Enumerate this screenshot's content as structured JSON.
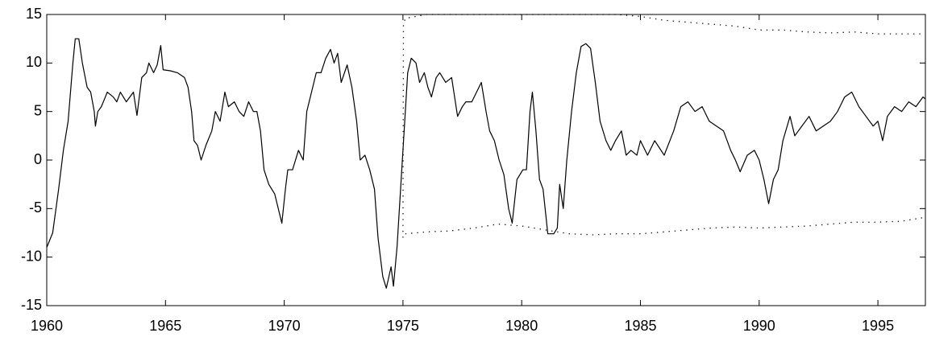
{
  "chart_data": {
    "type": "line",
    "xlim": [
      1960,
      1997
    ],
    "ylim": [
      -15,
      15
    ],
    "xticks": [
      1960,
      1965,
      1970,
      1975,
      1980,
      1985,
      1990,
      1995
    ],
    "yticks": [
      -15,
      -10,
      -5,
      0,
      5,
      10,
      15
    ],
    "grid": false,
    "series": [
      {
        "color": "#000000",
        "style": "solid",
        "x": [
          1960.0,
          1960.25,
          1960.5,
          1960.7,
          1960.9,
          1961.1,
          1961.2,
          1961.35,
          1961.5,
          1961.7,
          1961.85,
          1962.0,
          1962.05,
          1962.15,
          1962.3,
          1962.55,
          1962.8,
          1962.95,
          1963.1,
          1963.35,
          1963.65,
          1963.8,
          1964.0,
          1964.2,
          1964.3,
          1964.5,
          1964.65,
          1964.8,
          1964.9,
          1965.2,
          1965.5,
          1965.8,
          1965.95,
          1966.1,
          1966.2,
          1966.35,
          1966.5,
          1966.7,
          1966.95,
          1967.1,
          1967.3,
          1967.5,
          1967.65,
          1967.9,
          1968.1,
          1968.3,
          1968.5,
          1968.7,
          1968.85,
          1969.0,
          1969.15,
          1969.35,
          1969.6,
          1969.75,
          1969.9,
          1970.05,
          1970.15,
          1970.35,
          1970.6,
          1970.8,
          1970.95,
          1971.15,
          1971.35,
          1971.55,
          1971.75,
          1971.95,
          1972.1,
          1972.25,
          1972.4,
          1972.65,
          1972.85,
          1973.05,
          1973.2,
          1973.4,
          1973.6,
          1973.8,
          1973.95,
          1974.15,
          1974.3,
          1974.5,
          1974.6,
          1974.75,
          1974.9,
          1975.05,
          1975.2,
          1975.35,
          1975.55,
          1975.7,
          1975.9,
          1976.05,
          1976.2,
          1976.4,
          1976.55,
          1976.8,
          1977.05,
          1977.3,
          1977.5,
          1977.65,
          1977.9,
          1978.1,
          1978.3,
          1978.5,
          1978.65,
          1978.85,
          1979.05,
          1979.25,
          1979.45,
          1979.6,
          1979.8,
          1980.05,
          1980.2,
          1980.35,
          1980.45,
          1980.6,
          1980.75,
          1980.9,
          1981.1,
          1981.35,
          1981.5,
          1981.6,
          1981.75,
          1981.9,
          1982.1,
          1982.3,
          1982.5,
          1982.7,
          1982.9,
          1983.1,
          1983.3,
          1983.55,
          1983.75,
          1983.95,
          1984.2,
          1984.4,
          1984.6,
          1984.85,
          1985.0,
          1985.3,
          1985.6,
          1986.0,
          1986.4,
          1986.7,
          1987.0,
          1987.3,
          1987.6,
          1987.9,
          1988.2,
          1988.5,
          1988.8,
          1989.0,
          1989.2,
          1989.5,
          1989.8,
          1990.0,
          1990.2,
          1990.4,
          1990.6,
          1990.8,
          1991.0,
          1991.3,
          1991.5,
          1991.8,
          1992.1,
          1992.4,
          1992.7,
          1993.0,
          1993.3,
          1993.6,
          1993.9,
          1994.2,
          1994.5,
          1994.8,
          1995.0,
          1995.2,
          1995.4,
          1995.7,
          1996.0,
          1996.3,
          1996.6,
          1996.9,
          1997.0
        ],
        "values": [
          -9,
          -7.5,
          -3,
          1,
          4,
          10,
          12.5,
          12.5,
          10,
          7.5,
          7,
          5,
          3.5,
          5,
          5.5,
          7,
          6.5,
          6,
          7,
          6,
          7,
          4.6,
          8.5,
          9,
          10,
          9,
          9.8,
          11.8,
          9.3,
          9.2,
          9,
          8.5,
          7.5,
          5,
          2,
          1.5,
          0,
          1.5,
          3,
          5,
          4,
          7,
          5.5,
          6,
          5,
          4.5,
          6,
          5,
          5,
          3,
          -1,
          -2.5,
          -3.5,
          -5,
          -6.5,
          -3,
          -1,
          -1,
          1,
          0,
          5,
          7,
          9,
          9,
          10.5,
          11.4,
          10,
          11,
          8,
          9.8,
          7.5,
          4,
          0,
          0.5,
          -1,
          -3,
          -8,
          -12,
          -13.2,
          -11,
          -13,
          -9,
          -3,
          3,
          9,
          10.5,
          10,
          8,
          9,
          7.5,
          6.5,
          8.5,
          9,
          8,
          8.5,
          4.5,
          5.5,
          6,
          6,
          7,
          8,
          5,
          3,
          2,
          0,
          -1.5,
          -5,
          -6.5,
          -2,
          -1,
          -1,
          5,
          7,
          3,
          -2,
          -3,
          -7.6,
          -7.6,
          -7,
          -2.5,
          -5,
          0,
          5,
          9,
          11.7,
          12,
          11.5,
          8,
          4,
          2,
          1,
          2,
          3,
          0.5,
          1,
          0.5,
          2,
          0.5,
          2,
          0.5,
          3,
          5.5,
          6,
          5,
          5.5,
          4,
          3.5,
          3,
          1,
          0,
          -1.2,
          0.5,
          1,
          0,
          -2,
          -4.5,
          -2,
          -1,
          2,
          4.5,
          2.5,
          3.5,
          4.5,
          3,
          3.5,
          4,
          5,
          6.5,
          7,
          5.5,
          4.5,
          3.5,
          4,
          2,
          4.5,
          5.5,
          5,
          6,
          5.5,
          6.5,
          6.3
        ]
      },
      {
        "color": "#000000",
        "style": "dotted",
        "x": [
          1975.0,
          1975.02,
          1975.1,
          1976,
          1977,
          1978,
          1979,
          1980,
          1981,
          1982,
          1983,
          1984,
          1985,
          1986,
          1987,
          1988,
          1989,
          1990,
          1991,
          1992,
          1993,
          1994,
          1995,
          1996,
          1997
        ],
        "values": [
          -8,
          14,
          14.6,
          15,
          15,
          15,
          15,
          15,
          15,
          15,
          15,
          15,
          14.8,
          14.4,
          14.2,
          14,
          13.8,
          13.4,
          13.4,
          13.2,
          13.1,
          13.2,
          13,
          13,
          13
        ]
      },
      {
        "color": "#000000",
        "style": "dotted",
        "x": [
          1975.1,
          1976,
          1977,
          1978,
          1979,
          1980,
          1981,
          1982,
          1983,
          1984,
          1985,
          1986,
          1987,
          1988,
          1989,
          1990,
          1991,
          1992,
          1993,
          1994,
          1995,
          1996,
          1997
        ],
        "values": [
          -7.6,
          -7.4,
          -7.3,
          -7.0,
          -6.6,
          -6.8,
          -7.2,
          -7.6,
          -7.7,
          -7.6,
          -7.6,
          -7.4,
          -7.2,
          -7.0,
          -6.9,
          -7.0,
          -6.9,
          -6.8,
          -6.6,
          -6.4,
          -6.4,
          -6.3,
          -5.9
        ]
      }
    ]
  }
}
